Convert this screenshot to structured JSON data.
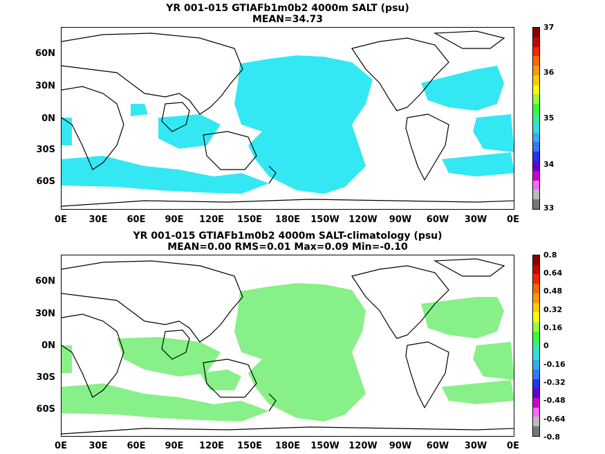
{
  "panel_top": {
    "title_line1": "YR 001-015 GTIAFb1m0b2 4000m SALT (psu)",
    "title_line2": "MEAN=34.73",
    "fill_color": "#33e8f2",
    "fill_color_name": "cyan",
    "colorbar_labels": [
      "37",
      "36",
      "35",
      "34",
      "33"
    ],
    "colorbar_colors": [
      "#8b0000",
      "#cc0000",
      "#ff2200",
      "#ff6600",
      "#ff9900",
      "#ffcc00",
      "#ffff00",
      "#99ff33",
      "#33ff33",
      "#33ee99",
      "#33dddd",
      "#33aaff",
      "#3377ff",
      "#2233ff",
      "#6600cc",
      "#cc00cc",
      "#ff66ff",
      "#bbbbbb",
      "#777777"
    ]
  },
  "panel_bottom": {
    "title_line1": "YR 001-015 GTIAFb1m0b2 4000m SALT-climatology (psu)",
    "title_line2": "MEAN=0.00   RMS=0.01   Max=0.09   Min=-0.10",
    "fill_color": "#88f088",
    "fill_color_name": "light green",
    "colorbar_labels": [
      "0.8",
      "0.64",
      "0.48",
      "0.32",
      "0.16",
      "0",
      "-0.16",
      "-0.32",
      "-0.48",
      "-0.64",
      "-0.8"
    ],
    "colorbar_colors": [
      "#8b0000",
      "#cc0000",
      "#ff2200",
      "#ff6600",
      "#ff9900",
      "#ffcc00",
      "#ffff00",
      "#99ff33",
      "#33ff33",
      "#33ee99",
      "#33dddd",
      "#33aaff",
      "#3377ff",
      "#2233ff",
      "#6600cc",
      "#cc00cc",
      "#ff66ff",
      "#bbbbbb",
      "#777777"
    ]
  },
  "lat_labels": [
    "60N",
    "30N",
    "0N",
    "30S",
    "60S"
  ],
  "lon_labels": [
    "0E",
    "30E",
    "60E",
    "90E",
    "120E",
    "150E",
    "180E",
    "150W",
    "120W",
    "90W",
    "60W",
    "30W",
    "0E"
  ]
}
